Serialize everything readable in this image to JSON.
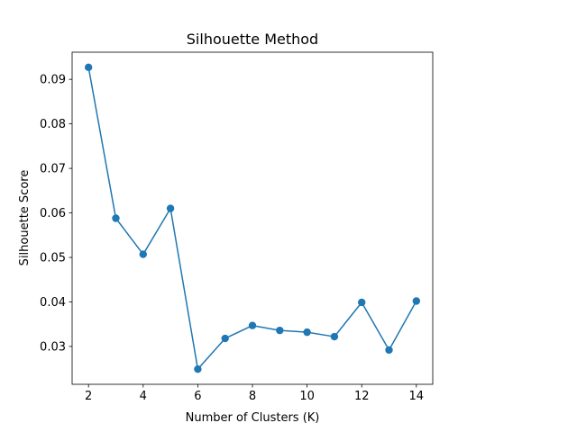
{
  "chart_data": {
    "type": "line",
    "title": "Silhouette Method",
    "xlabel": "Number of Clusters (K)",
    "ylabel": "Silhouette Score",
    "x": [
      2,
      3,
      4,
      5,
      6,
      7,
      8,
      9,
      10,
      11,
      12,
      13,
      14
    ],
    "series": [
      {
        "values": [
          0.0927,
          0.0588,
          0.0507,
          0.061,
          0.0249,
          0.0318,
          0.0347,
          0.0336,
          0.0332,
          0.0322,
          0.0399,
          0.0292,
          0.0402
        ]
      }
    ],
    "xlim": [
      1.4,
      14.6
    ],
    "ylim": [
      0.0215,
      0.0961
    ],
    "xticks": [
      2,
      4,
      6,
      8,
      10,
      12,
      14
    ],
    "xtick_labels": [
      "2",
      "4",
      "6",
      "8",
      "10",
      "12",
      "14"
    ],
    "yticks": [
      0.03,
      0.04,
      0.05,
      0.06,
      0.07,
      0.08,
      0.09
    ],
    "ytick_labels": [
      "0.03",
      "0.04",
      "0.05",
      "0.06",
      "0.07",
      "0.08",
      "0.09"
    ],
    "grid": false,
    "line_color": "#1f77b4",
    "marker": "circle"
  }
}
